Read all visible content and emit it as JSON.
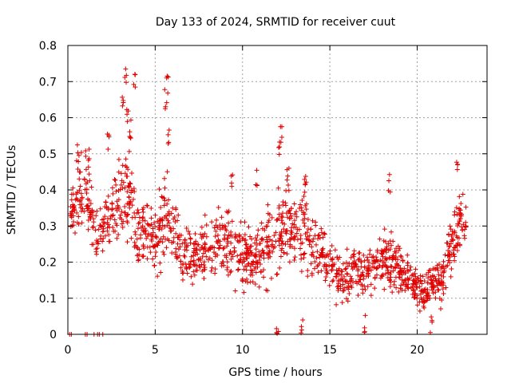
{
  "chart_data": {
    "type": "scatter",
    "title": "Day 133 of 2024, SRMTID for receiver cuut",
    "xlabel": "GPS time / hours",
    "ylabel": "SRMTID / TECUs",
    "xlim": [
      0,
      24
    ],
    "ylim": [
      0,
      0.8
    ],
    "xticks": [
      0,
      5,
      10,
      15,
      20
    ],
    "yticks": [
      0,
      0.1,
      0.2,
      0.3,
      0.4,
      0.5,
      0.6,
      0.7,
      0.8
    ],
    "xtick_labels": [
      "0",
      "5",
      "10",
      "15",
      "20"
    ],
    "ytick_labels": [
      "0",
      "0.1",
      "0.2",
      "0.3",
      "0.4",
      "0.5",
      "0.6",
      "0.7",
      "0.8"
    ],
    "grid": true,
    "marker": "+",
    "series": [
      {
        "name": "SRMTID",
        "color": "#e00000",
        "trend_x": [
          0,
          0.3,
          0.6,
          1.0,
          1.5,
          2.0,
          2.5,
          3.0,
          3.5,
          4.0,
          4.5,
          5.0,
          5.5,
          6.0,
          6.5,
          7.0,
          7.5,
          8.0,
          8.5,
          9.0,
          9.5,
          10.0,
          10.5,
          11.0,
          11.5,
          12.0,
          12.5,
          13.0,
          13.5,
          14.0,
          14.5,
          15.0,
          15.5,
          16.0,
          16.5,
          17.0,
          17.5,
          18.0,
          18.5,
          19.0,
          19.5,
          20.0,
          20.5,
          21.0,
          21.5,
          22.0,
          22.5,
          22.8
        ],
        "trend_y": [
          0.3,
          0.36,
          0.38,
          0.4,
          0.3,
          0.28,
          0.35,
          0.38,
          0.4,
          0.26,
          0.3,
          0.25,
          0.33,
          0.28,
          0.22,
          0.22,
          0.22,
          0.24,
          0.26,
          0.26,
          0.23,
          0.22,
          0.22,
          0.22,
          0.24,
          0.3,
          0.3,
          0.28,
          0.3,
          0.26,
          0.24,
          0.2,
          0.16,
          0.16,
          0.18,
          0.17,
          0.19,
          0.2,
          0.2,
          0.17,
          0.16,
          0.13,
          0.12,
          0.14,
          0.17,
          0.25,
          0.33,
          0.3
        ],
        "spread_y": [
          0.04,
          0.06,
          0.07,
          0.08,
          0.06,
          0.05,
          0.07,
          0.09,
          0.1,
          0.08,
          0.07,
          0.08,
          0.09,
          0.07,
          0.07,
          0.06,
          0.06,
          0.07,
          0.07,
          0.08,
          0.07,
          0.07,
          0.06,
          0.07,
          0.08,
          0.09,
          0.09,
          0.08,
          0.08,
          0.07,
          0.06,
          0.05,
          0.05,
          0.05,
          0.05,
          0.05,
          0.05,
          0.05,
          0.05,
          0.05,
          0.04,
          0.04,
          0.04,
          0.04,
          0.05,
          0.07,
          0.06,
          0.05
        ],
        "zero_points_x": [
          0.1,
          0.2,
          1.0,
          1.1,
          1.5,
          1.7,
          1.8,
          2.0
        ],
        "peaks": [
          {
            "x": 3.3,
            "y": 0.74
          },
          {
            "x": 3.8,
            "y": 0.73
          },
          {
            "x": 3.15,
            "y": 0.67
          },
          {
            "x": 5.7,
            "y": 0.72
          },
          {
            "x": 5.6,
            "y": 0.68
          },
          {
            "x": 3.4,
            "y": 0.63
          },
          {
            "x": 3.6,
            "y": 0.6
          },
          {
            "x": 5.8,
            "y": 0.57
          },
          {
            "x": 12.2,
            "y": 0.59
          },
          {
            "x": 12.1,
            "y": 0.54
          },
          {
            "x": 2.3,
            "y": 0.56
          },
          {
            "x": 0.6,
            "y": 0.53
          },
          {
            "x": 1.2,
            "y": 0.52
          },
          {
            "x": 22.3,
            "y": 0.51
          },
          {
            "x": 18.4,
            "y": 0.45
          },
          {
            "x": 9.4,
            "y": 0.46
          },
          {
            "x": 10.8,
            "y": 0.46
          },
          {
            "x": 12.6,
            "y": 0.47
          },
          {
            "x": 13.6,
            "y": 0.45
          },
          {
            "x": 12.0,
            "y": 0.05
          },
          {
            "x": 13.4,
            "y": 0.06
          },
          {
            "x": 17.0,
            "y": 0.06
          },
          {
            "x": 20.8,
            "y": 0.05
          }
        ]
      }
    ]
  }
}
